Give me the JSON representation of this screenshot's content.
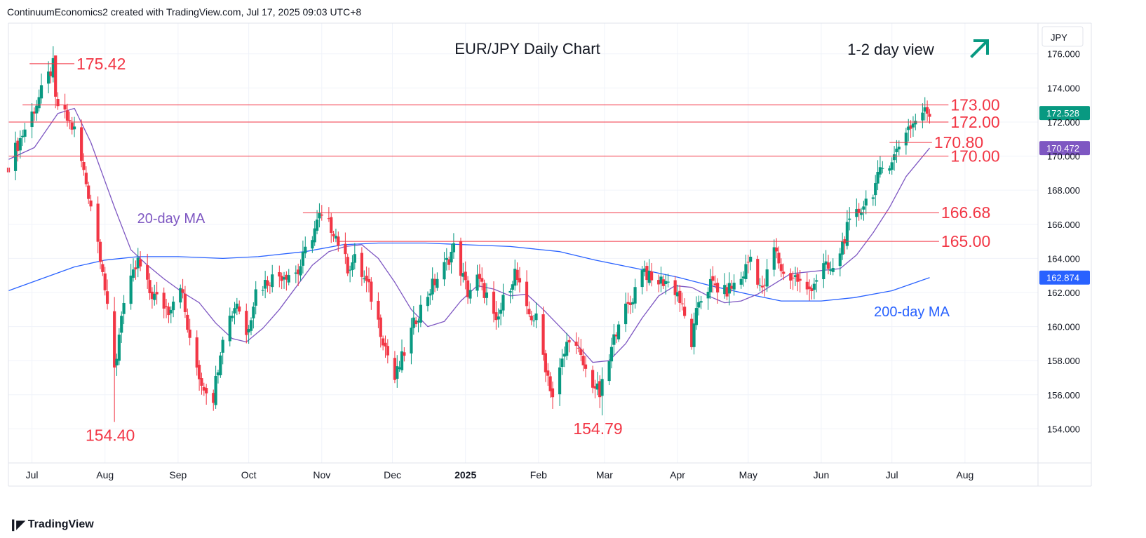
{
  "header": {
    "text": "ContinuumEconomics2 created with TradingView.com, Jul 17, 2025 09:03 UTC+8"
  },
  "footer": {
    "brand": "TradingView",
    "logo_icon": "tradingview-logo-icon"
  },
  "colors": {
    "up": "#089981",
    "down": "#f23645",
    "ma20": "#7e57c2",
    "ma200": "#2962ff",
    "level": "#f23645",
    "price_badge": "#089981",
    "ma20_badge": "#7e57c2",
    "ma200_badge": "#2962ff",
    "arrow": "#089981"
  },
  "chart_data": {
    "type": "candlestick",
    "title": "EUR/JPY Daily Chart",
    "view_label": "1-2 day view",
    "view_icon": "arrow-up-right-icon",
    "currency": "JPY",
    "ylim": [
      152.0,
      177.8
    ],
    "y_ticks": [
      "176.000",
      "174.000",
      "172.000",
      "170.000",
      "168.000",
      "166.000",
      "164.000",
      "162.000",
      "160.000",
      "158.000",
      "156.000",
      "154.000"
    ],
    "y_tick_values": [
      176,
      174,
      172,
      170,
      168,
      166,
      164,
      162,
      160,
      158,
      156,
      154
    ],
    "x_ticks": [
      {
        "label": "Jul",
        "date": "2024-07-01"
      },
      {
        "label": "Aug",
        "date": "2024-08-01"
      },
      {
        "label": "Sep",
        "date": "2024-09-01"
      },
      {
        "label": "Oct",
        "date": "2024-10-01"
      },
      {
        "label": "Nov",
        "date": "2024-11-01"
      },
      {
        "label": "Dec",
        "date": "2024-12-01"
      },
      {
        "label": "2025",
        "date": "2025-01-01",
        "bold": true
      },
      {
        "label": "Feb",
        "date": "2025-02-01"
      },
      {
        "label": "Mar",
        "date": "2025-03-01"
      },
      {
        "label": "Apr",
        "date": "2025-04-01"
      },
      {
        "label": "May",
        "date": "2025-05-01"
      },
      {
        "label": "Jun",
        "date": "2025-06-01"
      },
      {
        "label": "Jul",
        "date": "2025-07-01"
      },
      {
        "label": "Aug",
        "date": "2025-08-01"
      }
    ],
    "x_range": [
      "2024-06-21",
      "2025-09-01"
    ],
    "levels": [
      {
        "label": "175.42",
        "value": 175.42,
        "from": "2024-06-30",
        "to": "2024-07-19"
      },
      {
        "label": "173.00",
        "value": 173.0,
        "from": "2024-06-27",
        "to": "2025-07-25"
      },
      {
        "label": "172.00",
        "value": 172.0,
        "from": "2024-06-21",
        "to": "2025-07-25"
      },
      {
        "label": "170.80",
        "value": 170.8,
        "from": "2025-06-30",
        "to": "2025-07-18"
      },
      {
        "label": "170.00",
        "value": 170.0,
        "from": "2024-06-21",
        "to": "2025-07-25"
      },
      {
        "label": "166.68",
        "value": 166.68,
        "from": "2024-10-24",
        "to": "2025-07-21"
      },
      {
        "label": "165.00",
        "value": 165.0,
        "from": "2024-11-08",
        "to": "2025-07-21"
      }
    ],
    "annotations": [
      {
        "text": "154.40",
        "date": "2024-08-05",
        "value": 154.4
      },
      {
        "text": "154.79",
        "date": "2025-02-28",
        "value": 154.79
      }
    ],
    "ma_labels": [
      {
        "text": "20-day MA",
        "series": "ma20"
      },
      {
        "text": "200-day MA",
        "series": "ma200"
      }
    ],
    "price_badges": [
      {
        "text": "172.528",
        "value": 172.528,
        "color": "price_badge"
      },
      {
        "text": "170.472",
        "value": 170.472,
        "color": "ma20_badge"
      },
      {
        "text": "162.874",
        "value": 162.874,
        "color": "ma200_badge"
      }
    ],
    "close_path": [
      [
        "2024-06-21",
        169.5
      ],
      [
        "2024-07-02",
        172.8
      ],
      [
        "2024-07-10",
        175.3
      ],
      [
        "2024-07-11",
        173.2
      ],
      [
        "2024-07-19",
        171.5
      ],
      [
        "2024-07-26",
        167.2
      ],
      [
        "2024-07-31",
        163.5
      ],
      [
        "2024-08-05",
        157.0
      ],
      [
        "2024-08-08",
        160.9
      ],
      [
        "2024-08-15",
        163.8
      ],
      [
        "2024-08-20",
        162.0
      ],
      [
        "2024-08-28",
        161.0
      ],
      [
        "2024-09-02",
        162.6
      ],
      [
        "2024-09-06",
        159.0
      ],
      [
        "2024-09-11",
        156.7
      ],
      [
        "2024-09-16",
        155.9
      ],
      [
        "2024-09-20",
        159.6
      ],
      [
        "2024-09-26",
        161.5
      ],
      [
        "2024-09-30",
        159.5
      ],
      [
        "2024-10-04",
        162.1
      ],
      [
        "2024-10-10",
        162.8
      ],
      [
        "2024-10-16",
        163.1
      ],
      [
        "2024-10-22",
        163.2
      ],
      [
        "2024-10-25",
        164.4
      ],
      [
        "2024-10-31",
        166.4
      ],
      [
        "2024-11-06",
        165.7
      ],
      [
        "2024-11-12",
        163.5
      ],
      [
        "2024-11-15",
        163.9
      ],
      [
        "2024-11-21",
        162.2
      ],
      [
        "2024-11-26",
        159.8
      ],
      [
        "2024-12-02",
        156.9
      ],
      [
        "2024-12-06",
        158.5
      ],
      [
        "2024-12-11",
        160.5
      ],
      [
        "2024-12-17",
        162.2
      ],
      [
        "2024-12-23",
        163.5
      ],
      [
        "2024-12-27",
        164.6
      ],
      [
        "2025-01-02",
        162.0
      ],
      [
        "2025-01-06",
        162.8
      ],
      [
        "2025-01-10",
        161.8
      ],
      [
        "2025-01-14",
        160.0
      ],
      [
        "2025-01-17",
        161.5
      ],
      [
        "2025-01-22",
        163.2
      ],
      [
        "2025-01-27",
        160.8
      ],
      [
        "2025-01-31",
        160.4
      ],
      [
        "2025-02-03",
        158.3
      ],
      [
        "2025-02-07",
        155.9
      ],
      [
        "2025-02-12",
        158.4
      ],
      [
        "2025-02-14",
        159.5
      ],
      [
        "2025-02-18",
        158.4
      ],
      [
        "2025-02-21",
        157.4
      ],
      [
        "2025-02-27",
        156.0
      ],
      [
        "2025-03-03",
        158.0
      ],
      [
        "2025-03-07",
        160.5
      ],
      [
        "2025-03-12",
        161.3
      ],
      [
        "2025-03-17",
        163.6
      ],
      [
        "2025-03-21",
        162.6
      ],
      [
        "2025-03-27",
        162.7
      ],
      [
        "2025-04-01",
        162.0
      ],
      [
        "2025-04-03",
        161.0
      ],
      [
        "2025-04-07",
        159.0
      ],
      [
        "2025-04-10",
        161.5
      ],
      [
        "2025-04-15",
        162.5
      ],
      [
        "2025-04-21",
        162.0
      ],
      [
        "2025-04-28",
        162.8
      ],
      [
        "2025-05-02",
        164.1
      ],
      [
        "2025-05-07",
        162.0
      ],
      [
        "2025-05-12",
        164.6
      ],
      [
        "2025-05-16",
        163.0
      ],
      [
        "2025-05-21",
        162.9
      ],
      [
        "2025-05-26",
        162.0
      ],
      [
        "2025-06-02",
        163.5
      ],
      [
        "2025-06-06",
        163.2
      ],
      [
        "2025-06-12",
        165.7
      ],
      [
        "2025-06-18",
        167.0
      ],
      [
        "2025-06-23",
        168.0
      ],
      [
        "2025-06-27",
        169.3
      ],
      [
        "2025-07-02",
        170.0
      ],
      [
        "2025-07-07",
        171.6
      ],
      [
        "2025-07-10",
        171.9
      ],
      [
        "2025-07-14",
        172.6
      ],
      [
        "2025-07-17",
        172.53
      ]
    ],
    "ma20_path": [
      [
        "2024-06-21",
        169.8
      ],
      [
        "2024-07-02",
        170.5
      ],
      [
        "2024-07-12",
        172.5
      ],
      [
        "2024-07-19",
        172.8
      ],
      [
        "2024-07-26",
        170.8
      ],
      [
        "2024-08-05",
        167.0
      ],
      [
        "2024-08-12",
        164.5
      ],
      [
        "2024-08-19",
        163.6
      ],
      [
        "2024-08-26",
        162.8
      ],
      [
        "2024-09-03",
        162.0
      ],
      [
        "2024-09-10",
        161.4
      ],
      [
        "2024-09-17",
        160.2
      ],
      [
        "2024-09-24",
        159.3
      ],
      [
        "2024-09-30",
        159.1
      ],
      [
        "2024-10-07",
        159.9
      ],
      [
        "2024-10-14",
        161.0
      ],
      [
        "2024-10-21",
        162.3
      ],
      [
        "2024-10-28",
        163.6
      ],
      [
        "2024-11-04",
        164.4
      ],
      [
        "2024-11-11",
        164.7
      ],
      [
        "2024-11-18",
        164.8
      ],
      [
        "2024-11-25",
        164.0
      ],
      [
        "2024-12-02",
        162.6
      ],
      [
        "2024-12-09",
        161.0
      ],
      [
        "2024-12-16",
        160.0
      ],
      [
        "2024-12-23",
        160.3
      ],
      [
        "2024-12-30",
        161.5
      ],
      [
        "2025-01-06",
        162.4
      ],
      [
        "2025-01-13",
        162.2
      ],
      [
        "2025-01-20",
        161.8
      ],
      [
        "2025-01-27",
        161.9
      ],
      [
        "2025-02-03",
        161.0
      ],
      [
        "2025-02-10",
        160.0
      ],
      [
        "2025-02-17",
        159.0
      ],
      [
        "2025-02-24",
        157.9
      ],
      [
        "2025-03-03",
        158.0
      ],
      [
        "2025-03-10",
        159.0
      ],
      [
        "2025-03-17",
        160.5
      ],
      [
        "2025-03-24",
        161.8
      ],
      [
        "2025-03-31",
        162.4
      ],
      [
        "2025-04-07",
        162.3
      ],
      [
        "2025-04-14",
        161.8
      ],
      [
        "2025-04-21",
        161.4
      ],
      [
        "2025-04-28",
        161.5
      ],
      [
        "2025-05-05",
        161.9
      ],
      [
        "2025-05-12",
        162.5
      ],
      [
        "2025-05-19",
        163.1
      ],
      [
        "2025-05-26",
        163.2
      ],
      [
        "2025-06-02",
        163.3
      ],
      [
        "2025-06-09",
        163.4
      ],
      [
        "2025-06-16",
        164.2
      ],
      [
        "2025-06-23",
        165.5
      ],
      [
        "2025-06-30",
        167.0
      ],
      [
        "2025-07-07",
        168.8
      ],
      [
        "2025-07-17",
        170.47
      ]
    ],
    "ma200_path": [
      [
        "2024-06-21",
        162.1
      ],
      [
        "2024-07-05",
        162.8
      ],
      [
        "2024-07-19",
        163.5
      ],
      [
        "2024-08-01",
        163.9
      ],
      [
        "2024-08-15",
        164.1
      ],
      [
        "2024-09-01",
        164.1
      ],
      [
        "2024-09-20",
        164.0
      ],
      [
        "2024-10-05",
        164.1
      ],
      [
        "2024-10-25",
        164.4
      ],
      [
        "2024-11-10",
        164.8
      ],
      [
        "2024-11-25",
        164.9
      ],
      [
        "2024-12-15",
        164.9
      ],
      [
        "2025-01-01",
        164.8
      ],
      [
        "2025-01-20",
        164.7
      ],
      [
        "2025-02-10",
        164.4
      ],
      [
        "2025-02-25",
        163.9
      ],
      [
        "2025-03-15",
        163.4
      ],
      [
        "2025-04-01",
        162.9
      ],
      [
        "2025-04-15",
        162.4
      ],
      [
        "2025-05-01",
        161.9
      ],
      [
        "2025-05-15",
        161.5
      ],
      [
        "2025-06-01",
        161.5
      ],
      [
        "2025-06-15",
        161.7
      ],
      [
        "2025-07-01",
        162.1
      ],
      [
        "2025-07-17",
        162.87
      ]
    ],
    "candle_overrides": [
      {
        "date": "2024-07-11",
        "high": 175.42
      },
      {
        "date": "2024-08-05",
        "low": 154.4,
        "open": 160.9,
        "close": 157.6
      },
      {
        "date": "2025-02-28",
        "low": 154.79
      },
      {
        "date": "2025-07-14",
        "high": 173.1
      }
    ]
  }
}
